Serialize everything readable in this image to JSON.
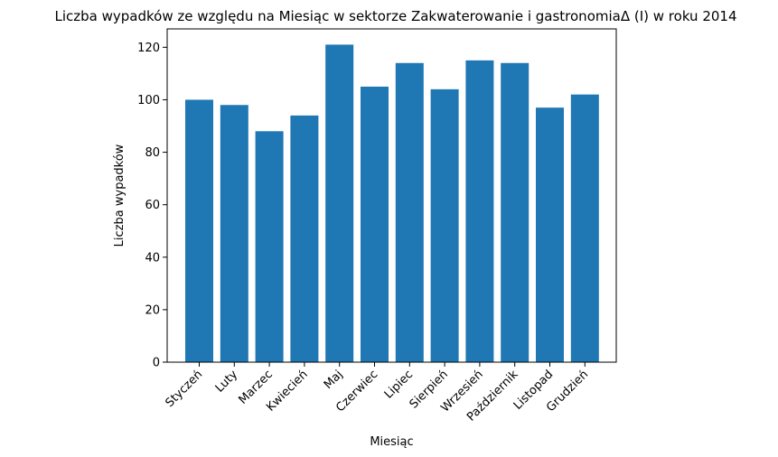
{
  "chart_data": {
    "type": "bar",
    "title": "Liczba wypadków ze względu na Miesiąc w sektorze Zakwaterowanie i gastronomiaΔ (I) w roku 2014",
    "xlabel": "Miesiąc",
    "ylabel": "Liczba wypadków",
    "categories": [
      "Styczeń",
      "Luty",
      "Marzec",
      "Kwiecień",
      "Maj",
      "Czerwiec",
      "Lipiec",
      "Sierpień",
      "Wrzesień",
      "Październik",
      "Listopad",
      "Grudzień"
    ],
    "values": [
      100,
      98,
      88,
      94,
      121,
      105,
      114,
      104,
      115,
      114,
      97,
      102
    ],
    "ylim": [
      0,
      127
    ],
    "yticks": [
      0,
      20,
      40,
      60,
      80,
      100,
      120
    ],
    "bar_color": "#1f77b4",
    "grid": false,
    "legend": "none"
  }
}
